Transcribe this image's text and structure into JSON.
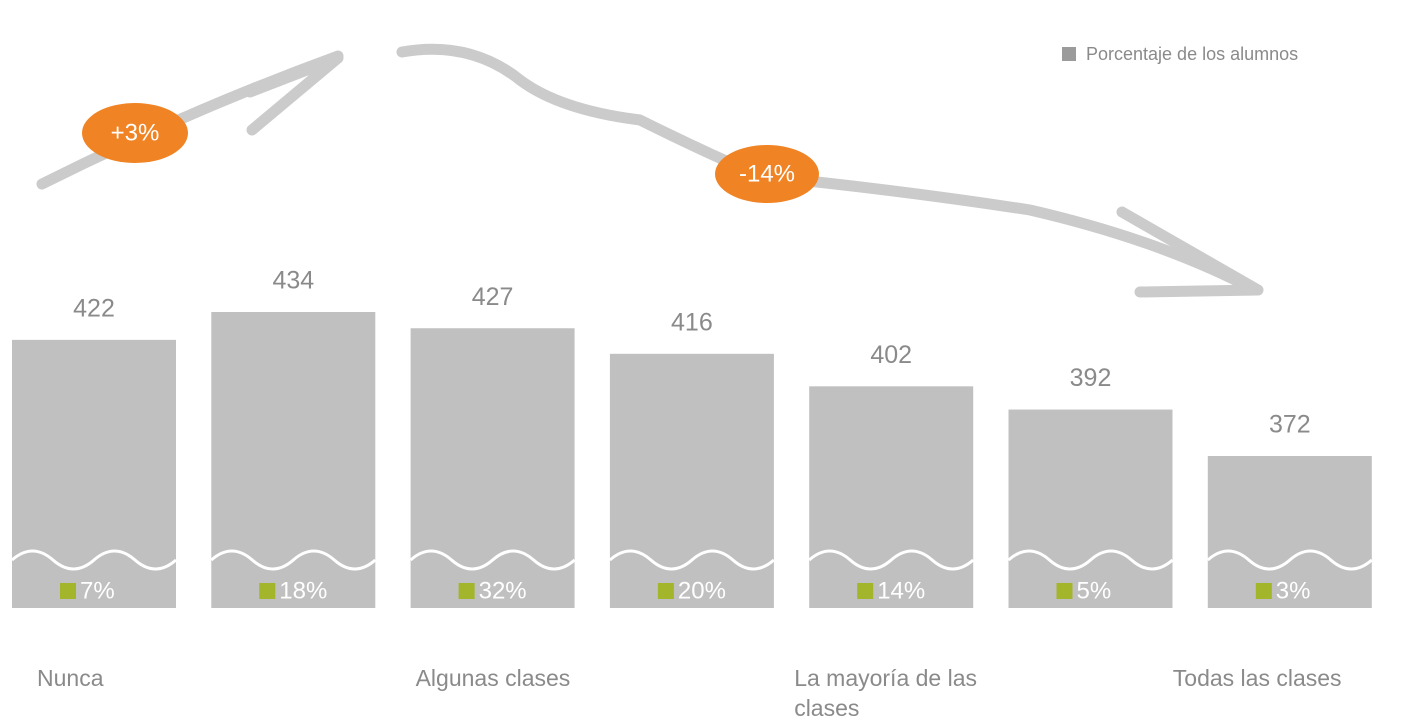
{
  "chart_data": {
    "type": "bar",
    "categories": [
      "Nunca",
      null,
      "Algunas clases",
      null,
      "La mayoría de las clases",
      null,
      "Todas las clases"
    ],
    "values": [
      422,
      434,
      427,
      416,
      402,
      392,
      372
    ],
    "color": "#c0c0c1",
    "series": [
      {
        "name": "Porcentaje de los alumnos",
        "color": "#a3b52b",
        "values": [
          7,
          18,
          32,
          20,
          14,
          5,
          3
        ],
        "value_labels": [
          "7%",
          "18%",
          "32%",
          "20%",
          "14%",
          "5%",
          "3%"
        ]
      }
    ],
    "annotations": [
      "+3%",
      "-14%"
    ]
  }
}
